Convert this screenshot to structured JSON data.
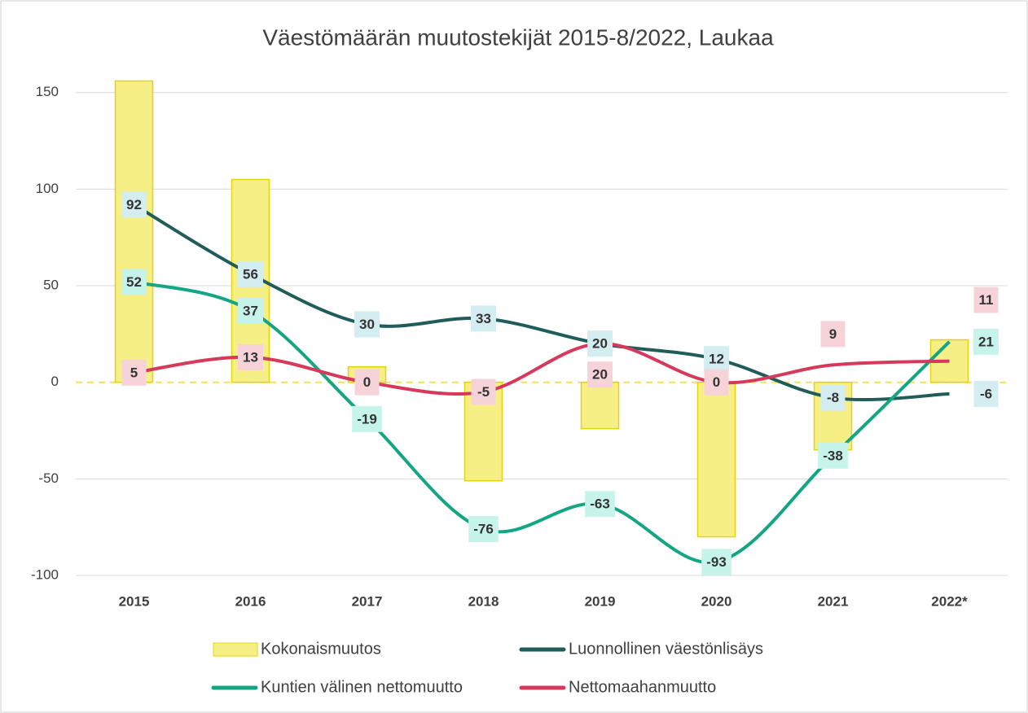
{
  "chart_data": {
    "type": "bar-line",
    "title": "Väestömäärän muutostekijät 2015-8/2022, Laukaa",
    "categories": [
      "2015",
      "2016",
      "2017",
      "2018",
      "2019",
      "2020",
      "2021",
      "2022*"
    ],
    "ylim": [
      -100,
      160
    ],
    "yticks": [
      -100,
      -50,
      0,
      50,
      100,
      150
    ],
    "grid": true,
    "series": [
      {
        "name": "Kokonaismuutos",
        "type": "bar",
        "color": "#f5ef86",
        "values": [
          156,
          105,
          8,
          -51,
          -24,
          -80,
          -35,
          22
        ]
      },
      {
        "name": "Luonnollinen väestönlisäys",
        "type": "line",
        "color": "#1f5c5a",
        "label_color": "#d3edf1",
        "values": [
          92,
          56,
          30,
          33,
          20,
          12,
          -8,
          -6
        ]
      },
      {
        "name": "Kuntien välinen nettomuutto",
        "type": "line",
        "color": "#14a585",
        "label_color": "#c6f4ea",
        "values": [
          52,
          37,
          -19,
          -76,
          -63,
          -93,
          -38,
          21
        ]
      },
      {
        "name": "Nettomaahanmuutto",
        "type": "line",
        "color": "#d6395b",
        "label_color": "#f6d3d8",
        "values": [
          5,
          13,
          0,
          -5,
          20,
          0,
          9,
          11
        ]
      }
    ]
  }
}
